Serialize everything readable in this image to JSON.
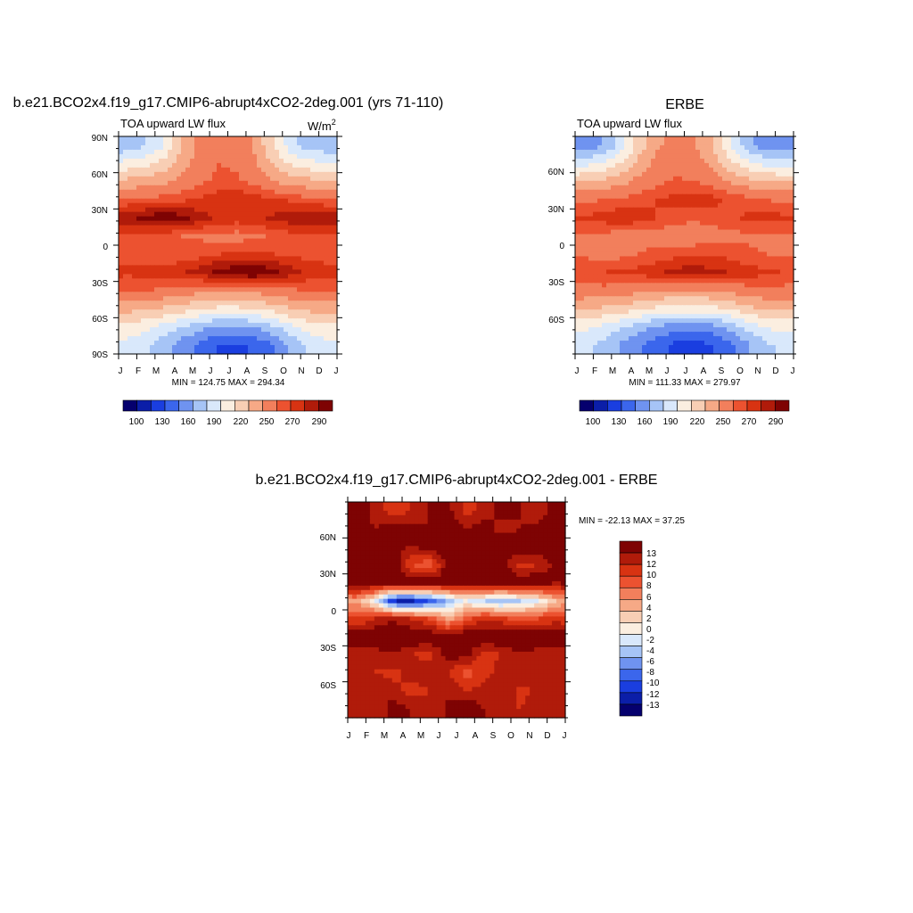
{
  "colors": {
    "abs_palette": [
      "#05006e",
      "#0b1ea8",
      "#1a3ee0",
      "#3b66ec",
      "#6f93f0",
      "#a6c4f6",
      "#d9e8fb",
      "#fbeee0",
      "#f8ceb4",
      "#f6a986",
      "#f27f5c",
      "#ec5230",
      "#d83312",
      "#b01b0a",
      "#7e0303"
    ],
    "diff_palette": [
      "#05006e",
      "#0b1ea8",
      "#1a3ee0",
      "#3b66ec",
      "#6f93f0",
      "#a6c4f6",
      "#d9e8fb",
      "#fbeee0",
      "#f8ceb4",
      "#f6a986",
      "#f27f5c",
      "#ec5230",
      "#d83312",
      "#b01b0a",
      "#7e0303"
    ]
  },
  "panels": {
    "left": {
      "title": "b.e21.BCO2x4.f19_g17.CMIP6-abrupt4xCO2-2deg.001 (yrs 71-110)",
      "subtitle": "TOA upward LW flux",
      "units": "W/m",
      "units_sup": "2",
      "minmax": "MIN = 124.75 MAX = 294.34",
      "y_ticks": [
        "90N",
        "60N",
        "30N",
        "0",
        "30S",
        "60S",
        "90S"
      ],
      "x_ticks": [
        "J",
        "F",
        "M",
        "A",
        "M",
        "J",
        "J",
        "A",
        "S",
        "O",
        "N",
        "D",
        "J"
      ],
      "colorbar_labels": [
        "100",
        "130",
        "160",
        "190",
        "220",
        "250",
        "270",
        "290"
      ]
    },
    "right": {
      "title": "ERBE",
      "subtitle": "TOA upward LW flux",
      "minmax": "MIN = 111.33 MAX = 279.97",
      "y_ticks": [
        "60N",
        "30N",
        "0",
        "30S",
        "60S"
      ],
      "x_ticks": [
        "J",
        "F",
        "M",
        "A",
        "M",
        "J",
        "J",
        "A",
        "S",
        "O",
        "N",
        "D",
        "J"
      ],
      "colorbar_labels": [
        "100",
        "130",
        "160",
        "190",
        "220",
        "250",
        "270",
        "290"
      ]
    },
    "bottom": {
      "title": "b.e21.BCO2x4.f19_g17.CMIP6-abrupt4xCO2-2deg.001 - ERBE",
      "minmax": "MIN = -22.13 MAX =  37.25",
      "y_ticks": [
        "60N",
        "30N",
        "0",
        "30S",
        "60S"
      ],
      "x_ticks": [
        "J",
        "F",
        "M",
        "A",
        "M",
        "J",
        "J",
        "A",
        "S",
        "O",
        "N",
        "D",
        "J"
      ],
      "colorbar_labels": [
        "13",
        "12",
        "10",
        "8",
        "6",
        "4",
        "2",
        "0",
        "-2",
        "-4",
        "-6",
        "-8",
        "-10",
        "-12",
        "-13"
      ]
    }
  },
  "chart_data": [
    {
      "type": "heatmap",
      "title": "b.e21.BCO2x4.f19_g17.CMIP6-abrupt4xCO2-2deg.001 (yrs 71-110)",
      "subtitle": "TOA upward LW flux",
      "units": "W/m2",
      "xlabel": "",
      "ylabel": "",
      "x": [
        "J",
        "F",
        "M",
        "A",
        "M",
        "J",
        "J",
        "A",
        "S",
        "O",
        "N",
        "D"
      ],
      "y": [
        82.5,
        67.5,
        52.5,
        37.5,
        22.5,
        7.5,
        -7.5,
        -22.5,
        -37.5,
        -52.5,
        -67.5,
        -82.5
      ],
      "values": [
        [
          165,
          175,
          190,
          220,
          242,
          250,
          246,
          232,
          205,
          180,
          168,
          163
        ],
        [
          195,
          200,
          210,
          228,
          244,
          250,
          248,
          238,
          218,
          202,
          195,
          193
        ],
        [
          225,
          228,
          232,
          240,
          248,
          253,
          252,
          246,
          236,
          228,
          225,
          224
        ],
        [
          252,
          254,
          255,
          258,
          262,
          266,
          268,
          266,
          262,
          258,
          254,
          252
        ],
        [
          278,
          283,
          290,
          285,
          275,
          268,
          265,
          268,
          272,
          276,
          278,
          278
        ],
        [
          258,
          255,
          252,
          250,
          248,
          246,
          245,
          248,
          252,
          256,
          258,
          258
        ],
        [
          255,
          252,
          250,
          252,
          256,
          260,
          262,
          262,
          260,
          258,
          256,
          255
        ],
        [
          262,
          265,
          268,
          270,
          276,
          284,
          290,
          292,
          285,
          275,
          268,
          264
        ],
        [
          250,
          250,
          248,
          244,
          240,
          238,
          238,
          240,
          244,
          248,
          250,
          250
        ],
        [
          225,
          222,
          218,
          212,
          206,
          202,
          202,
          204,
          212,
          220,
          225,
          226
        ],
        [
          200,
          195,
          185,
          175,
          165,
          158,
          158,
          162,
          172,
          186,
          198,
          202
        ],
        [
          185,
          178,
          165,
          152,
          140,
          130,
          128,
          132,
          145,
          165,
          180,
          186
        ]
      ],
      "xlim": [
        "J",
        "J"
      ],
      "ylim": [
        -90,
        90
      ]
    },
    {
      "type": "heatmap",
      "title": "ERBE",
      "subtitle": "TOA upward LW flux",
      "x": [
        "J",
        "F",
        "M",
        "A",
        "M",
        "J",
        "J",
        "A",
        "S",
        "O",
        "N",
        "D"
      ],
      "y": [
        82.5,
        67.5,
        52.5,
        37.5,
        22.5,
        7.5,
        -7.5,
        -22.5,
        -37.5,
        -52.5,
        -67.5,
        -82.5
      ],
      "values": [
        [
          150,
          160,
          180,
          212,
          232,
          240,
          236,
          220,
          190,
          165,
          152,
          148
        ],
        [
          185,
          192,
          205,
          225,
          240,
          246,
          244,
          232,
          210,
          193,
          186,
          182
        ],
        [
          220,
          225,
          230,
          240,
          247,
          252,
          250,
          245,
          235,
          226,
          221,
          219
        ],
        [
          248,
          250,
          252,
          256,
          260,
          264,
          266,
          264,
          258,
          254,
          250,
          248
        ],
        [
          262,
          265,
          268,
          265,
          260,
          255,
          252,
          255,
          258,
          262,
          264,
          263
        ],
        [
          248,
          246,
          244,
          244,
          244,
          242,
          242,
          244,
          246,
          248,
          248,
          248
        ],
        [
          248,
          246,
          246,
          250,
          254,
          256,
          258,
          258,
          256,
          252,
          250,
          248
        ],
        [
          258,
          260,
          262,
          264,
          268,
          274,
          276,
          274,
          270,
          266,
          262,
          260
        ],
        [
          245,
          246,
          244,
          240,
          236,
          234,
          234,
          236,
          240,
          244,
          246,
          246
        ],
        [
          222,
          218,
          214,
          208,
          202,
          198,
          198,
          200,
          208,
          216,
          222,
          223
        ],
        [
          195,
          188,
          178,
          168,
          158,
          152,
          152,
          156,
          165,
          180,
          192,
          196
        ],
        [
          178,
          170,
          158,
          146,
          136,
          126,
          124,
          128,
          140,
          158,
          172,
          178
        ]
      ],
      "xlim": [
        "J",
        "J"
      ],
      "ylim": [
        -90,
        90
      ]
    },
    {
      "type": "heatmap",
      "title": "b.e21.BCO2x4.f19_g17.CMIP6-abrupt4xCO2-2deg.001 - ERBE",
      "x": [
        "J",
        "F",
        "M",
        "A",
        "M",
        "J",
        "J",
        "A",
        "S",
        "O",
        "N",
        "D"
      ],
      "y": [
        82.5,
        67.5,
        52.5,
        37.5,
        22.5,
        7.5,
        -7.5,
        -22.5,
        -37.5,
        -52.5,
        -67.5,
        -82.5
      ],
      "values": [
        [
          14,
          11,
          9,
          10,
          12,
          13,
          9,
          11,
          13,
          12,
          10,
          14
        ],
        [
          13,
          12,
          14,
          13,
          12,
          14,
          12,
          13,
          11,
          12,
          13,
          14
        ],
        [
          14,
          14,
          13,
          12,
          13,
          14,
          14,
          13,
          14,
          14,
          13,
          14
        ],
        [
          13,
          14,
          14,
          8,
          6,
          13,
          12,
          14,
          13,
          9,
          10,
          13
        ],
        [
          14,
          14,
          14,
          14,
          14,
          14,
          14,
          14,
          14,
          14,
          14,
          12
        ],
        [
          4,
          -2,
          -12,
          -13,
          -10,
          -6,
          -2,
          -4,
          -6,
          -4,
          -2,
          2
        ],
        [
          8,
          10,
          12,
          10,
          8,
          3,
          7,
          10,
          9,
          7,
          8,
          9
        ],
        [
          14,
          14,
          14,
          14,
          14,
          13,
          14,
          14,
          14,
          14,
          14,
          14
        ],
        [
          10,
          11,
          12,
          10,
          9,
          13,
          13,
          9,
          10,
          12,
          11,
          10
        ],
        [
          12,
          10,
          9,
          11,
          12,
          10,
          7,
          9,
          11,
          12,
          10,
          11
        ],
        [
          10,
          12,
          11,
          9,
          10,
          12,
          10,
          11,
          12,
          9,
          11,
          10
        ],
        [
          12,
          10,
          13,
          12,
          10,
          12,
          14,
          12,
          11,
          10,
          12,
          11
        ]
      ],
      "xlim": [
        "J",
        "J"
      ],
      "ylim": [
        -90,
        90
      ]
    }
  ]
}
